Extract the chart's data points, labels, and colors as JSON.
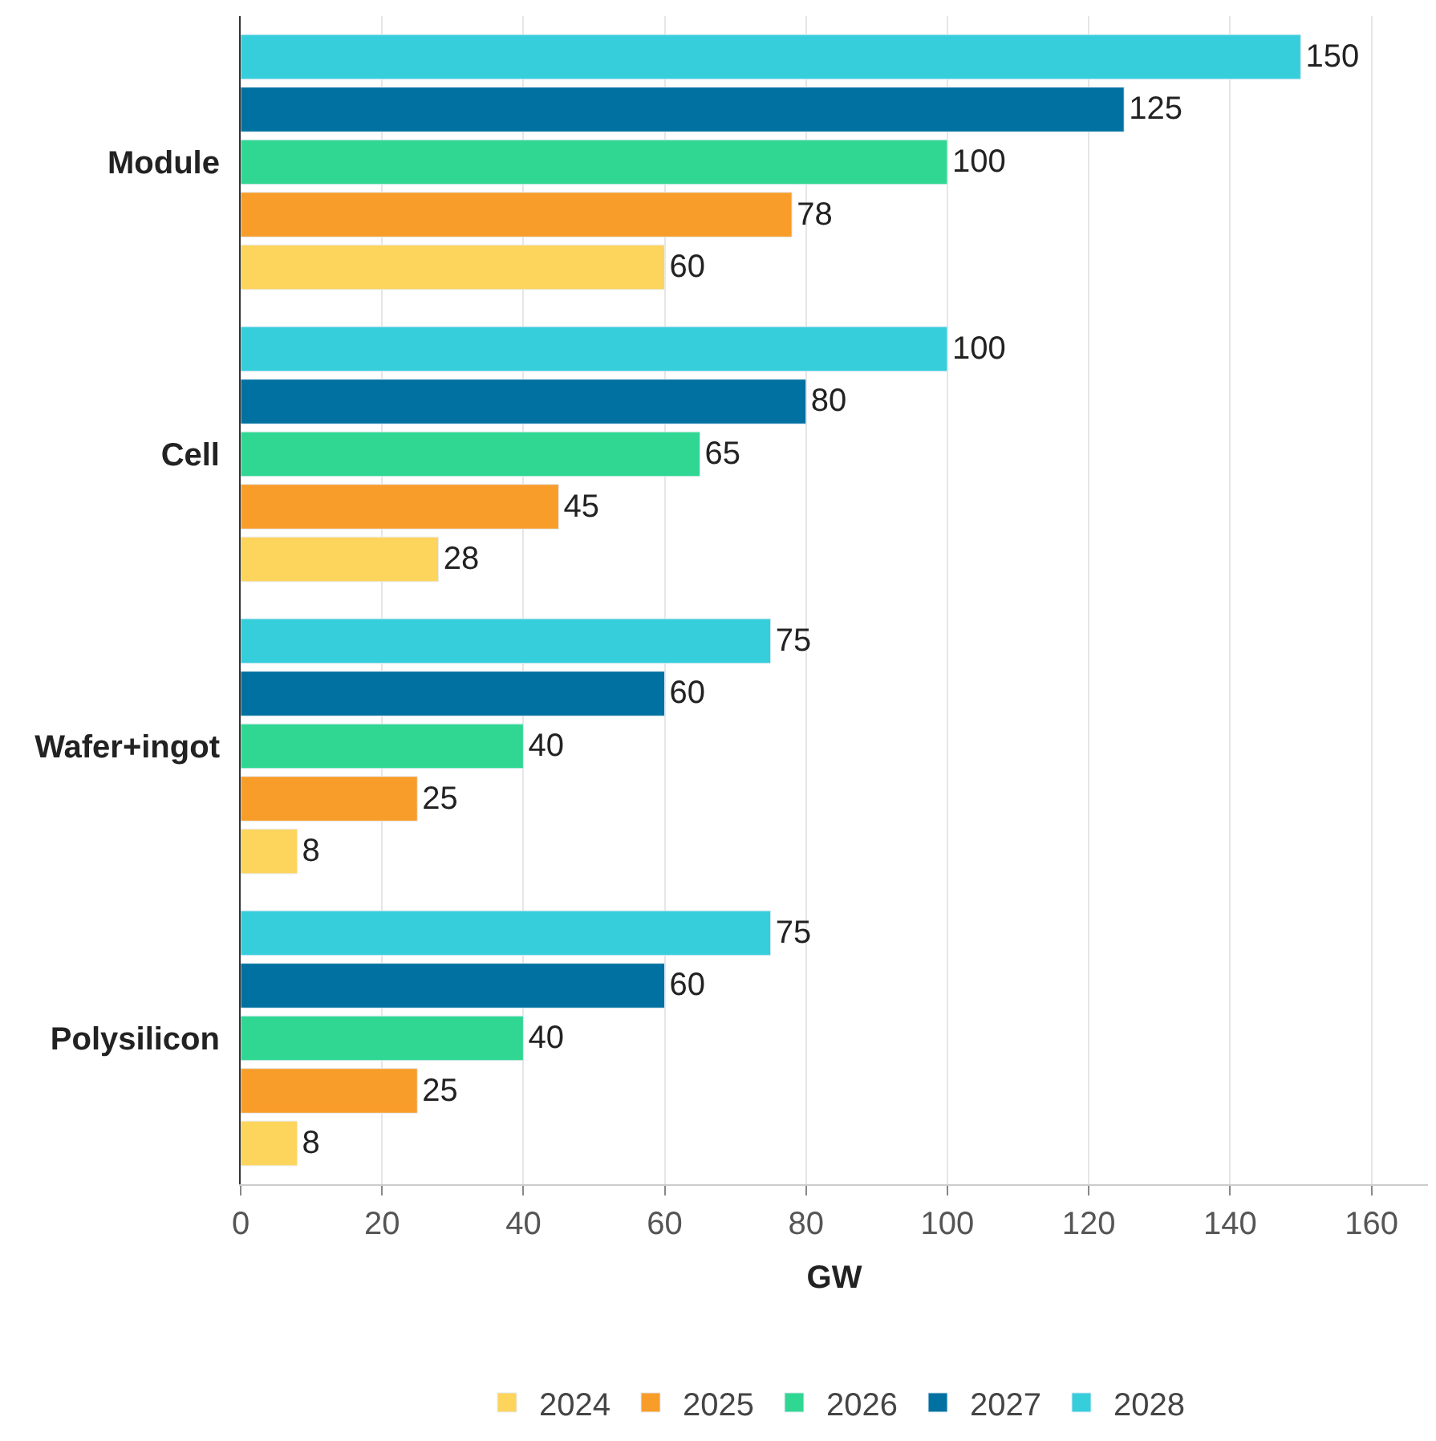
{
  "chart_data": {
    "type": "bar",
    "orientation": "horizontal",
    "xlabel": "GW",
    "categories": [
      "Module",
      "Cell",
      "Wafer+ingot",
      "Polysilicon"
    ],
    "series": [
      {
        "name": "2024",
        "color": "#fdd45c",
        "values": [
          60,
          28,
          8,
          8
        ]
      },
      {
        "name": "2025",
        "color": "#f99d2a",
        "values": [
          78,
          45,
          25,
          25
        ]
      },
      {
        "name": "2026",
        "color": "#30d792",
        "values": [
          100,
          65,
          40,
          40
        ]
      },
      {
        "name": "2027",
        "color": "#0071a0",
        "values": [
          125,
          80,
          60,
          60
        ]
      },
      {
        "name": "2028",
        "color": "#36cedb",
        "values": [
          150,
          100,
          75,
          75
        ]
      }
    ],
    "xlim": [
      0,
      168
    ],
    "xticks": [
      0,
      20,
      40,
      60,
      80,
      100,
      120,
      140,
      160
    ],
    "grid": "x",
    "legend": "bottom",
    "data_labels": true
  }
}
